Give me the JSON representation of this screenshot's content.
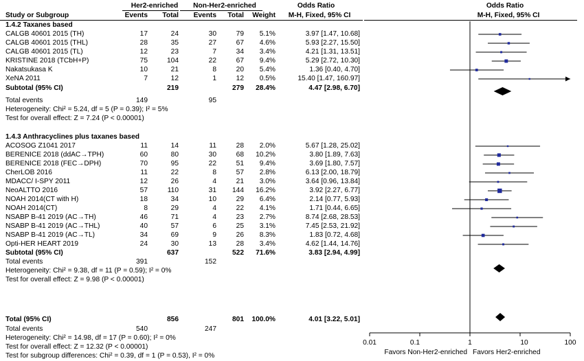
{
  "header": {
    "group1": "Her2-enriched",
    "group2": "Non-Her2-enriched",
    "col_or": "Odds Ratio",
    "col_or2": "Odds Ratio",
    "study": "Study or Subgroup",
    "events1": "Events",
    "total1": "Total",
    "events2": "Events",
    "total2": "Total",
    "weight": "Weight",
    "method": "M-H, Fixed, 95% CI",
    "method2": "M-H, Fixed, 95% CI"
  },
  "subgroups": [
    {
      "title": "1.4.2 Taxanes based",
      "studies": [
        {
          "name": "CALGB 40601 2015 (TH)",
          "e1": "17",
          "t1": "24",
          "e2": "30",
          "t2": "79",
          "w": "5.1%",
          "ci": "3.97 [1.47, 10.68]"
        },
        {
          "name": "CALGB 40601 2015 (THL)",
          "e1": "28",
          "t1": "35",
          "e2": "27",
          "t2": "67",
          "w": "4.6%",
          "ci": "5.93 [2.27, 15.50]"
        },
        {
          "name": "CALGB 40601 2015 (TL)",
          "e1": "12",
          "t1": "23",
          "e2": "7",
          "t2": "34",
          "w": "3.4%",
          "ci": "4.21 [1.31, 13.51]"
        },
        {
          "name": "KRISTINE 2018 (TCbH+P)",
          "e1": "75",
          "t1": "104",
          "e2": "22",
          "t2": "67",
          "w": "9.4%",
          "ci": "5.29 [2.72, 10.30]"
        },
        {
          "name": "Nakatsukasa K",
          "e1": "10",
          "t1": "21",
          "e2": "8",
          "t2": "20",
          "w": "5.4%",
          "ci": "1.36 [0.40, 4.70]"
        },
        {
          "name": "XeNA 2011",
          "e1": "7",
          "t1": "12",
          "e2": "1",
          "t2": "12",
          "w": "0.5%",
          "ci": "15.40 [1.47, 160.97]"
        }
      ],
      "subtotal": {
        "label": "Subtotal (95% CI)",
        "t1": "219",
        "t2": "279",
        "w": "28.4%",
        "ci": "4.47 [2.98, 6.70]"
      },
      "total_events": {
        "label": "Total events",
        "e1": "149",
        "e2": "95"
      },
      "heterogeneity": "Heterogeneity: Chi² = 5.24, df = 5 (P = 0.39); I² = 5%",
      "overall": "Test for overall effect: Z = 7.24 (P < 0.00001)"
    },
    {
      "title": "1.4.3 Anthracyclines plus taxanes based",
      "studies": [
        {
          "name": "ACOSOG Z1041 2017",
          "e1": "11",
          "t1": "14",
          "e2": "11",
          "t2": "28",
          "w": "2.0%",
          "ci": "5.67 [1.28, 25.02]"
        },
        {
          "name": "BERENICE 2018 (ddAC→TPH)",
          "e1": "60",
          "t1": "80",
          "e2": "30",
          "t2": "68",
          "w": "10.2%",
          "ci": "3.80 [1.89, 7.63]"
        },
        {
          "name": "BERENICE 2018 (FEC→DPH)",
          "e1": "70",
          "t1": "95",
          "e2": "22",
          "t2": "51",
          "w": "9.4%",
          "ci": "3.69 [1.80, 7.57]"
        },
        {
          "name": "CherLOB 2016",
          "e1": "11",
          "t1": "22",
          "e2": "8",
          "t2": "57",
          "w": "2.8%",
          "ci": "6.13 [2.00, 18.79]"
        },
        {
          "name": "MDACC/ I-SPY 2011",
          "e1": "12",
          "t1": "26",
          "e2": "4",
          "t2": "21",
          "w": "3.0%",
          "ci": "3.64 [0.96, 13.84]"
        },
        {
          "name": "NeoALTTO 2016",
          "e1": "57",
          "t1": "110",
          "e2": "31",
          "t2": "144",
          "w": "16.2%",
          "ci": "3.92 [2.27, 6.77]"
        },
        {
          "name": "NOAH 2014(CT with H)",
          "e1": "18",
          "t1": "34",
          "e2": "10",
          "t2": "29",
          "w": "6.4%",
          "ci": "2.14 [0.77, 5.93]"
        },
        {
          "name": "NOAH 2014(CT)",
          "e1": "8",
          "t1": "29",
          "e2": "4",
          "t2": "22",
          "w": "4.1%",
          "ci": "1.71 [0.44, 6.65]"
        },
        {
          "name": "NSABP B-41 2019 (AC→TH)",
          "e1": "46",
          "t1": "71",
          "e2": "4",
          "t2": "23",
          "w": "2.7%",
          "ci": "8.74 [2.68, 28.53]"
        },
        {
          "name": "NSABP B-41 2019 (AC→THL)",
          "e1": "40",
          "t1": "57",
          "e2": "6",
          "t2": "25",
          "w": "3.1%",
          "ci": "7.45 [2.53, 21.92]"
        },
        {
          "name": "NSABP B-41 2019 (AC→TL)",
          "e1": "34",
          "t1": "69",
          "e2": "9",
          "t2": "26",
          "w": "8.3%",
          "ci": "1.83 [0.72, 4.68]"
        },
        {
          "name": "Opti-HER HEART 2019",
          "e1": "24",
          "t1": "30",
          "e2": "13",
          "t2": "28",
          "w": "3.4%",
          "ci": "4.62 [1.44, 14.76]"
        }
      ],
      "subtotal": {
        "label": "Subtotal (95% CI)",
        "t1": "637",
        "t2": "522",
        "w": "71.6%",
        "ci": "3.83 [2.94, 4.99]"
      },
      "total_events": {
        "label": "Total events",
        "e1": "391",
        "e2": "152"
      },
      "heterogeneity": "Heterogeneity: Chi² = 9.38, df = 11 (P = 0.59); I² = 0%",
      "overall": "Test for overall effect: Z = 9.98 (P < 0.00001)"
    }
  ],
  "total": {
    "label": "Total (95% CI)",
    "t1": "856",
    "t2": "801",
    "w": "100.0%",
    "ci": "4.01 [3.22, 5.01]",
    "events_label": "Total events",
    "e1": "540",
    "e2": "247",
    "heterogeneity": "Heterogeneity: Chi² = 14.98, df = 17 (P = 0.60); I² = 0%",
    "overall": "Test for overall effect: Z = 12.32 (P < 0.00001)",
    "subgroup": "Test for subgroup differences: Chi² = 0.39, df = 1 (P = 0.53), I² = 0%"
  },
  "axis": {
    "ticks": [
      {
        "value": 0.01,
        "label": "0.01"
      },
      {
        "value": 0.1,
        "label": "0.1"
      },
      {
        "value": 1,
        "label": "1"
      },
      {
        "value": 10,
        "label": "10"
      },
      {
        "value": 100,
        "label": "100"
      }
    ],
    "favors_left": "Favors Non-Her2-enriched",
    "favors_right": "Favors Her2-enriched"
  },
  "colors": {
    "marker": "#1f2a9c",
    "line": "#000000"
  },
  "chart_data": {
    "type": "forest",
    "scale": "log",
    "xlim": [
      0.01,
      100
    ],
    "null_line": 1,
    "series": [
      {
        "subgroup": "1.4.2 Taxanes based",
        "points": [
          {
            "or": 3.97,
            "lo": 1.47,
            "hi": 10.68,
            "weight": 5.1
          },
          {
            "or": 5.93,
            "lo": 2.27,
            "hi": 15.5,
            "weight": 4.6
          },
          {
            "or": 4.21,
            "lo": 1.31,
            "hi": 13.51,
            "weight": 3.4
          },
          {
            "or": 5.29,
            "lo": 2.72,
            "hi": 10.3,
            "weight": 9.4
          },
          {
            "or": 1.36,
            "lo": 0.4,
            "hi": 4.7,
            "weight": 5.4
          },
          {
            "or": 15.4,
            "lo": 1.47,
            "hi": 160.97,
            "weight": 0.5
          }
        ],
        "pooled": {
          "or": 4.47,
          "lo": 2.98,
          "hi": 6.7
        }
      },
      {
        "subgroup": "1.4.3 Anthracyclines plus taxanes based",
        "points": [
          {
            "or": 5.67,
            "lo": 1.28,
            "hi": 25.02,
            "weight": 2.0
          },
          {
            "or": 3.8,
            "lo": 1.89,
            "hi": 7.63,
            "weight": 10.2
          },
          {
            "or": 3.69,
            "lo": 1.8,
            "hi": 7.57,
            "weight": 9.4
          },
          {
            "or": 6.13,
            "lo": 2.0,
            "hi": 18.79,
            "weight": 2.8
          },
          {
            "or": 3.64,
            "lo": 0.96,
            "hi": 13.84,
            "weight": 3.0
          },
          {
            "or": 3.92,
            "lo": 2.27,
            "hi": 6.77,
            "weight": 16.2
          },
          {
            "or": 2.14,
            "lo": 0.77,
            "hi": 5.93,
            "weight": 6.4
          },
          {
            "or": 1.71,
            "lo": 0.44,
            "hi": 6.65,
            "weight": 4.1
          },
          {
            "or": 8.74,
            "lo": 2.68,
            "hi": 28.53,
            "weight": 2.7
          },
          {
            "or": 7.45,
            "lo": 2.53,
            "hi": 21.92,
            "weight": 3.1
          },
          {
            "or": 1.83,
            "lo": 0.72,
            "hi": 4.68,
            "weight": 8.3
          },
          {
            "or": 4.62,
            "lo": 1.44,
            "hi": 14.76,
            "weight": 3.4
          }
        ],
        "pooled": {
          "or": 3.83,
          "lo": 2.94,
          "hi": 4.99
        }
      }
    ],
    "overall": {
      "or": 4.01,
      "lo": 3.22,
      "hi": 5.01
    }
  }
}
